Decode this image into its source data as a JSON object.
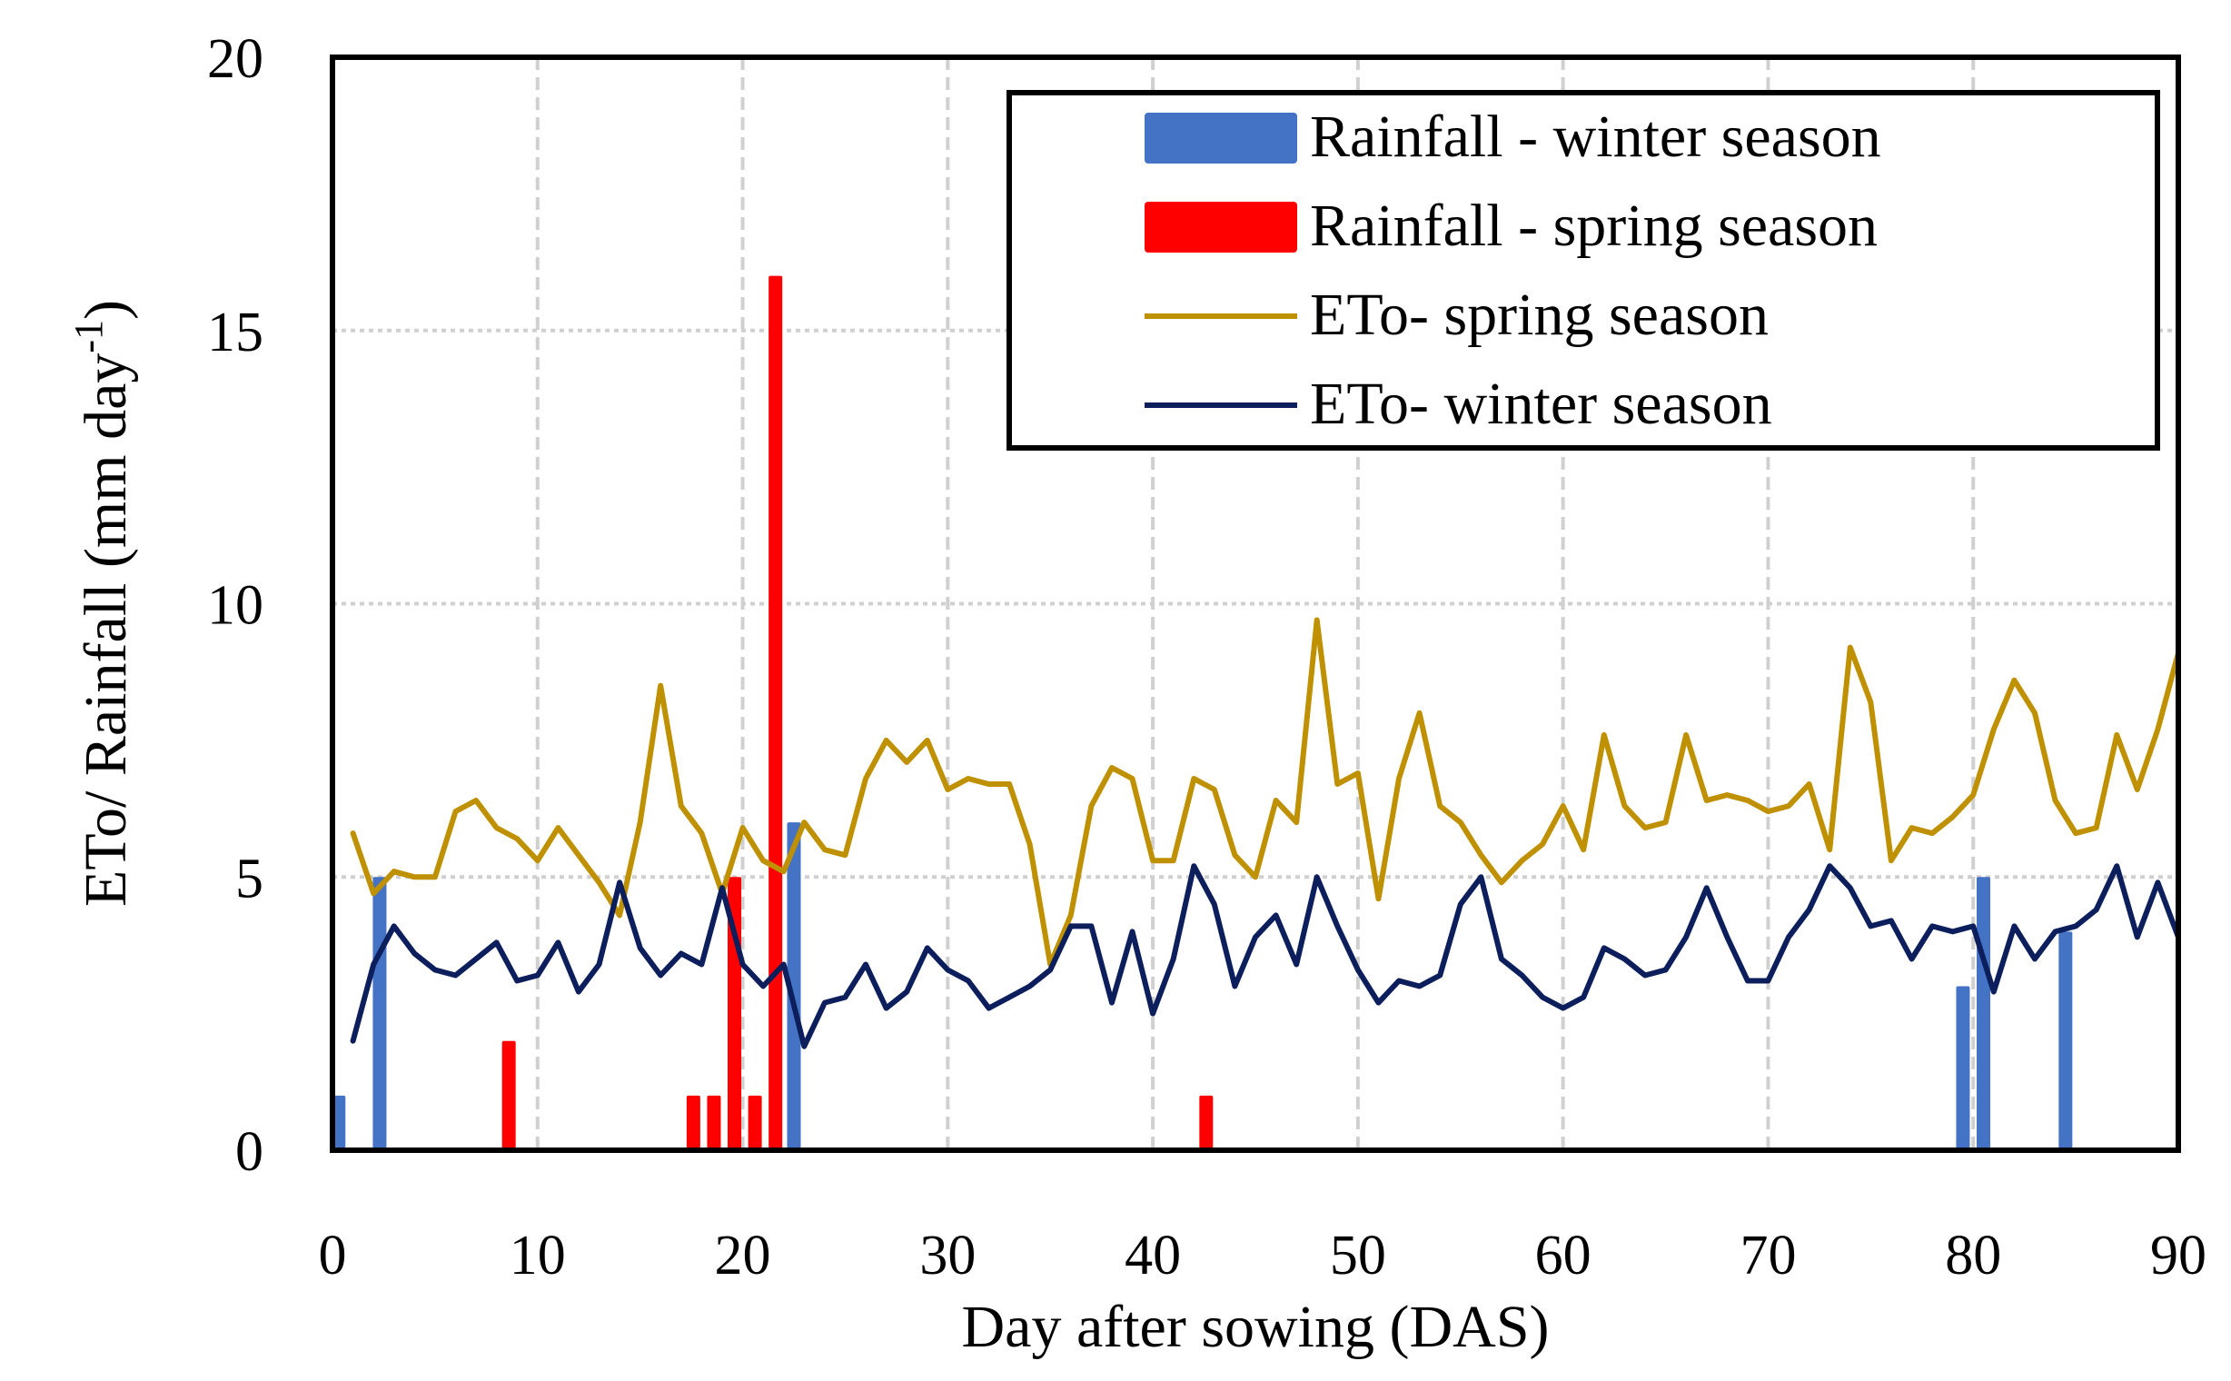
{
  "chart_data": {
    "type": "bar+line",
    "title": "",
    "xlabel": "Day after sowing (DAS)",
    "ylabel": "ETo/ Rainfall (mm day",
    "ylabel_superscript": "-1",
    "ylabel_suffix": ")",
    "xlim": [
      0,
      90
    ],
    "ylim": [
      0,
      20
    ],
    "x_ticks": [
      0,
      10,
      20,
      30,
      40,
      50,
      60,
      70,
      80,
      90
    ],
    "y_ticks": [
      0,
      5,
      10,
      15,
      20
    ],
    "grid": true,
    "legend_position": "top-right",
    "bar_series": [
      {
        "name": "Rainfall - winter season",
        "color": "#4472C4",
        "points": [
          {
            "x": 0.3,
            "y": 1.0
          },
          {
            "x": 2.3,
            "y": 5.0
          },
          {
            "x": 22.5,
            "y": 6.0
          },
          {
            "x": 79.5,
            "y": 3.0
          },
          {
            "x": 80.5,
            "y": 5.0
          },
          {
            "x": 84.5,
            "y": 4.0
          }
        ]
      },
      {
        "name": "Rainfall - spring season",
        "color": "#FF0000",
        "points": [
          {
            "x": 8.6,
            "y": 2.0
          },
          {
            "x": 17.6,
            "y": 1.0
          },
          {
            "x": 18.6,
            "y": 1.0
          },
          {
            "x": 19.6,
            "y": 5.0
          },
          {
            "x": 20.6,
            "y": 1.0
          },
          {
            "x": 21.6,
            "y": 16.0
          },
          {
            "x": 42.6,
            "y": 1.0
          }
        ]
      }
    ],
    "line_series": [
      {
        "name": "ETo- spring season",
        "color": "#BF9000",
        "x": [
          1,
          2,
          3,
          4,
          5,
          6,
          7,
          8,
          9,
          10,
          11,
          12,
          13,
          14,
          15,
          16,
          17,
          18,
          19,
          20,
          21,
          22,
          23,
          24,
          25,
          26,
          27,
          28,
          29,
          30,
          31,
          32,
          33,
          34,
          35,
          36,
          37,
          38,
          39,
          40,
          41,
          42,
          43,
          44,
          45,
          46,
          47,
          48,
          49,
          50,
          51,
          52,
          53,
          54,
          55,
          56,
          57,
          58,
          59,
          60,
          61,
          62,
          63,
          64,
          65,
          66,
          67,
          68,
          69,
          70,
          71,
          72,
          73,
          74,
          75,
          76,
          77,
          78,
          79,
          80,
          81,
          82,
          83,
          84,
          85,
          86,
          87,
          88,
          89,
          90
        ],
        "values": [
          5.8,
          4.7,
          5.1,
          5.0,
          5.0,
          6.2,
          6.4,
          5.9,
          5.7,
          5.3,
          5.9,
          5.4,
          4.9,
          4.3,
          6.0,
          8.5,
          6.3,
          5.8,
          4.7,
          5.9,
          5.3,
          5.1,
          6.0,
          5.5,
          5.4,
          6.8,
          7.5,
          7.1,
          7.5,
          6.6,
          6.8,
          6.7,
          6.7,
          5.6,
          3.4,
          4.3,
          6.3,
          7.0,
          6.8,
          5.3,
          5.3,
          6.8,
          6.6,
          5.4,
          5.0,
          6.4,
          6.0,
          9.7,
          6.7,
          6.9,
          4.6,
          6.8,
          8.0,
          6.3,
          6.0,
          5.4,
          4.9,
          5.3,
          5.6,
          6.3,
          5.5,
          7.6,
          6.3,
          5.9,
          6.0,
          7.6,
          6.4,
          6.5,
          6.4,
          6.2,
          6.3,
          6.7,
          5.5,
          9.2,
          8.2,
          5.3,
          5.9,
          5.8,
          6.1,
          6.5,
          7.7,
          8.6,
          8.0,
          6.4,
          5.8,
          5.9,
          7.6,
          6.6,
          7.7,
          9.1
        ]
      },
      {
        "name": "ETo- winter season",
        "color": "#0C1F5C",
        "x": [
          1,
          2,
          3,
          4,
          5,
          6,
          7,
          8,
          9,
          10,
          11,
          12,
          13,
          14,
          15,
          16,
          17,
          18,
          19,
          20,
          21,
          22,
          23,
          24,
          25,
          26,
          27,
          28,
          29,
          30,
          31,
          32,
          33,
          34,
          35,
          36,
          37,
          38,
          39,
          40,
          41,
          42,
          43,
          44,
          45,
          46,
          47,
          48,
          49,
          50,
          51,
          52,
          53,
          54,
          55,
          56,
          57,
          58,
          59,
          60,
          61,
          62,
          63,
          64,
          65,
          66,
          67,
          68,
          69,
          70,
          71,
          72,
          73,
          74,
          75,
          76,
          77,
          78,
          79,
          80,
          81,
          82,
          83,
          84,
          85,
          86,
          87,
          88,
          89,
          90
        ],
        "values": [
          2.0,
          3.4,
          4.1,
          3.6,
          3.3,
          3.2,
          3.5,
          3.8,
          3.1,
          3.2,
          3.8,
          2.9,
          3.4,
          4.9,
          3.7,
          3.2,
          3.6,
          3.4,
          4.8,
          3.4,
          3.0,
          3.4,
          1.9,
          2.7,
          2.8,
          3.4,
          2.6,
          2.9,
          3.7,
          3.3,
          3.1,
          2.6,
          2.8,
          3.0,
          3.3,
          4.1,
          4.1,
          2.7,
          4.0,
          2.5,
          3.5,
          5.2,
          4.5,
          3.0,
          3.9,
          4.3,
          3.4,
          5.0,
          4.1,
          3.3,
          2.7,
          3.1,
          3.0,
          3.2,
          4.5,
          5.0,
          3.5,
          3.2,
          2.8,
          2.6,
          2.8,
          3.7,
          3.5,
          3.2,
          3.3,
          3.9,
          4.8,
          3.9,
          3.1,
          3.1,
          3.9,
          4.4,
          5.2,
          4.8,
          4.1,
          4.2,
          3.5,
          4.1,
          4.0,
          4.1,
          2.9,
          4.1,
          3.5,
          4.0,
          4.1,
          4.4,
          5.2,
          3.9,
          4.9,
          3.9
        ]
      }
    ]
  }
}
